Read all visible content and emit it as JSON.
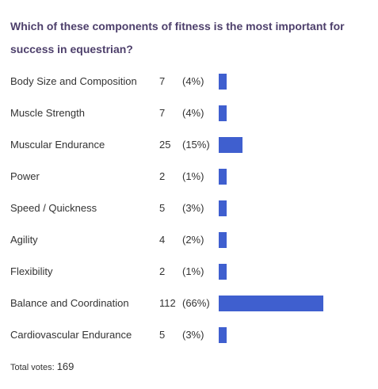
{
  "poll": {
    "question": "Which of these components of fitness is the most important for success in equestrian?",
    "bar_color": "#3f5fcf",
    "options": [
      {
        "label": "Body Size and Composition",
        "votes": "7",
        "percent": "(4%)",
        "fraction": 0.04
      },
      {
        "label": "Muscle Strength",
        "votes": "7",
        "percent": "(4%)",
        "fraction": 0.04
      },
      {
        "label": "Muscular Endurance",
        "votes": "25",
        "percent": "(15%)",
        "fraction": 0.15
      },
      {
        "label": "Power",
        "votes": "2",
        "percent": "(1%)",
        "fraction": 0.01
      },
      {
        "label": "Speed / Quickness",
        "votes": "5",
        "percent": "(3%)",
        "fraction": 0.03
      },
      {
        "label": "Agility",
        "votes": "4",
        "percent": "(2%)",
        "fraction": 0.02
      },
      {
        "label": "Flexibility",
        "votes": "2",
        "percent": "(1%)",
        "fraction": 0.01
      },
      {
        "label": "Balance and Coordination",
        "votes": "112",
        "percent": "(66%)",
        "fraction": 0.66
      },
      {
        "label": "Cardiovascular Endurance",
        "votes": "5",
        "percent": "(3%)",
        "fraction": 0.03
      }
    ],
    "total_label": "Total votes:",
    "total_votes": "169"
  }
}
